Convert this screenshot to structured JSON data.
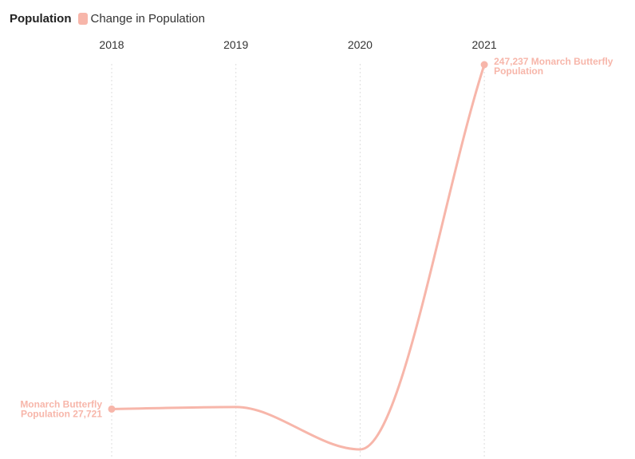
{
  "legend": {
    "title": "Population",
    "entry": "Change in Population"
  },
  "colors": {
    "series": "#f7b6aa",
    "grid": "#dddddd",
    "text": "#333333"
  },
  "chart_data": {
    "type": "line",
    "x": [
      "2018",
      "2019",
      "2020",
      "2021"
    ],
    "series": [
      {
        "name": "Change in Population",
        "values": [
          27721,
          29000,
          2000,
          247237
        ]
      }
    ],
    "ylim": [
      2000,
      247237
    ],
    "grid": "vertical dotted lines at each year",
    "legend_position": "top-left",
    "annotations": [
      {
        "point": 0,
        "lines": [
          "Monarch Butterfly",
          "Population 27,721"
        ],
        "anchor": "left"
      },
      {
        "point": 3,
        "lines": [
          "247,237 Monarch Butterfly",
          "Population"
        ],
        "anchor": "right"
      }
    ]
  }
}
